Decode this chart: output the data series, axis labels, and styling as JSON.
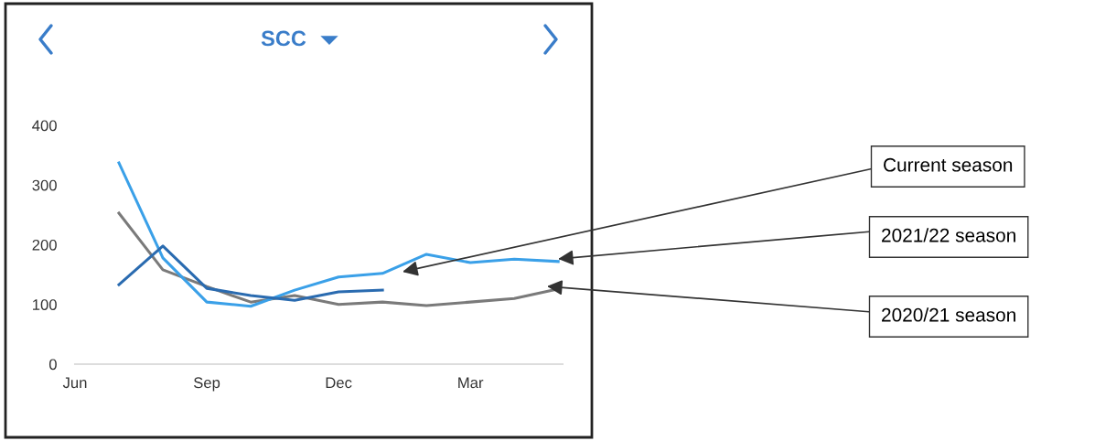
{
  "chart_data": {
    "type": "line",
    "title": "SCC",
    "categories": [
      "Jun",
      null,
      null,
      "Sep",
      null,
      null,
      "Dec",
      null,
      null,
      "Mar",
      null,
      null
    ],
    "ylim": [
      0,
      400
    ],
    "yticks": [
      0,
      100,
      200,
      300,
      400
    ],
    "grid": false,
    "legend": false,
    "marker": "none",
    "line_style": "solid",
    "series": [
      {
        "color": "#7a7a7a",
        "values": [
          null,
          253,
          158,
          130,
          104,
          115,
          100,
          104,
          98,
          104,
          110,
          126
        ]
      },
      {
        "color": "#3aa0e8",
        "values": [
          null,
          337,
          178,
          104,
          97,
          124,
          146,
          152,
          184,
          170,
          176,
          172
        ]
      },
      {
        "color": "#2a6bb0",
        "values": [
          null,
          133,
          198,
          127,
          115,
          107,
          121,
          124,
          null,
          null,
          null,
          null
        ]
      }
    ],
    "annotations": [
      "Current season",
      "2021/22 season",
      "2020/21 season"
    ]
  }
}
